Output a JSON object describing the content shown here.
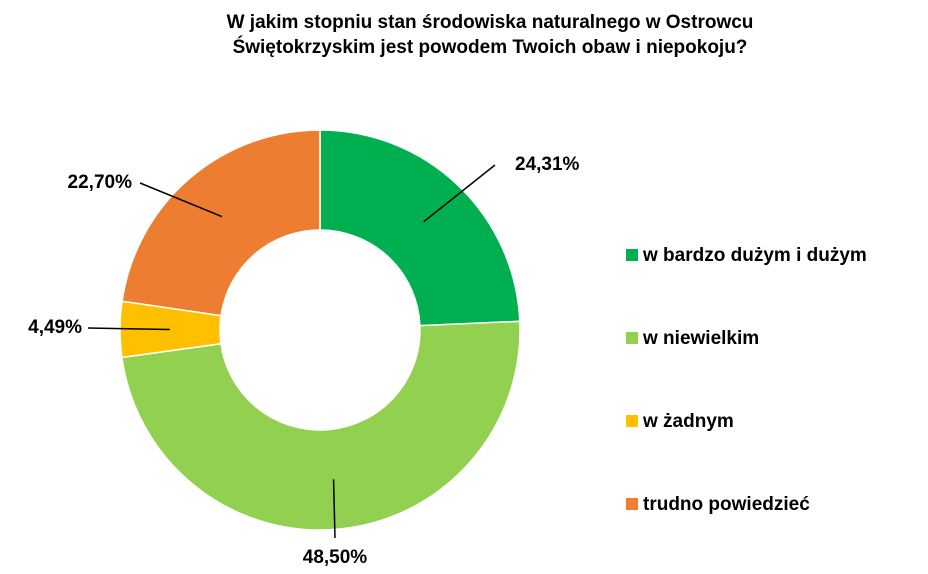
{
  "chart_data": {
    "type": "donut",
    "title": "W jakim stopniu stan środowiska naturalnego w Ostrowcu Świętokrzyskim jest powodem Twoich obaw i niepokoju?",
    "categories": [
      "w bardzo dużym i dużym",
      "w niewielkim",
      "w żadnym",
      "trudno powiedzieć"
    ],
    "values": [
      24.31,
      48.5,
      4.49,
      22.7
    ],
    "value_labels": [
      "24,31%",
      "48,50%",
      "4,49%",
      "22,70%"
    ],
    "colors": [
      "#00b050",
      "#92d050",
      "#ffc000",
      "#ed7d31"
    ],
    "legend": "right"
  }
}
